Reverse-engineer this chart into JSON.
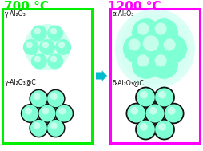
{
  "bg_color": "#ffffff",
  "left_box_color": "#00ee00",
  "right_box_color": "#ff00ff",
  "arrow_color": "#00bbcc",
  "temp_left": "700 °C",
  "temp_right": "1200 °C",
  "temp_left_color": "#00ee00",
  "temp_right_color": "#ff00ff",
  "label_tl": "γ-Al₂O₃",
  "label_bl": "γ-Al₂O₃@C",
  "label_tr": "α-Al₂O₃",
  "label_br": "δ-Al₂O₃@C",
  "sphere_fill": "#7fffd4",
  "sphere_outline": "#111111",
  "glow_color": "#b0ffe8",
  "fig_width": 2.54,
  "fig_height": 1.89,
  "dpi": 100
}
